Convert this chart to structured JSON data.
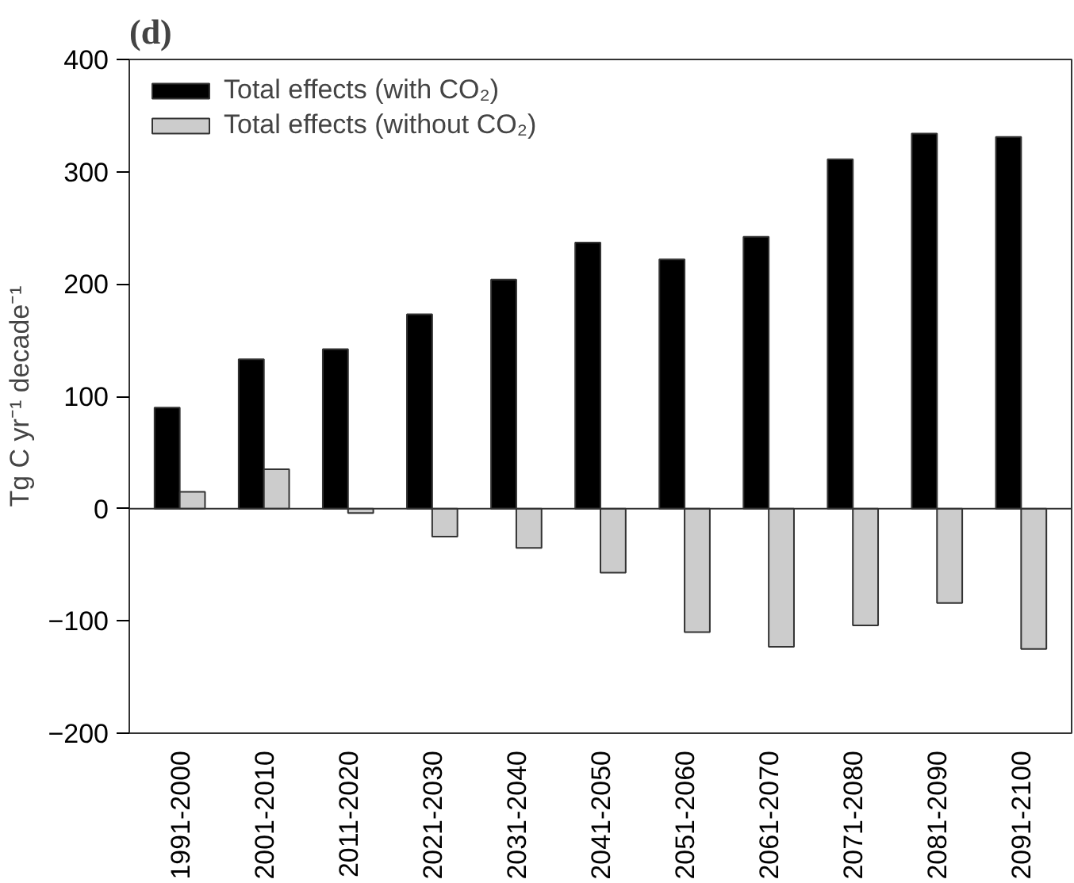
{
  "chart_data": {
    "type": "bar",
    "title": "(d)",
    "ylabel": "Tg C yr⁻¹ decade⁻¹",
    "categories": [
      "1991-2000",
      "2001-2010",
      "2011-2020",
      "2021-2030",
      "2031-2040",
      "2041-2050",
      "2051-2060",
      "2061-2070",
      "2071-2080",
      "2081-2090",
      "2091-2100"
    ],
    "series": [
      {
        "name": "Total effects (with CO₂)",
        "color": "#000000",
        "values": [
          90,
          133,
          142,
          173,
          204,
          237,
          222,
          242,
          311,
          334,
          331
        ]
      },
      {
        "name": "Total effects (without CO₂)",
        "color": "#cccccc",
        "values": [
          15,
          35,
          -4,
          -25,
          -35,
          -57,
          -110,
          -123,
          -104,
          -84,
          -125
        ]
      }
    ],
    "ylim": [
      -200,
      400
    ],
    "yticks": [
      -200,
      -100,
      0,
      100,
      200,
      300,
      400
    ],
    "ref_lines": [
      {
        "axis": "y",
        "value": 0
      }
    ],
    "grid": false,
    "legend": "top left"
  }
}
